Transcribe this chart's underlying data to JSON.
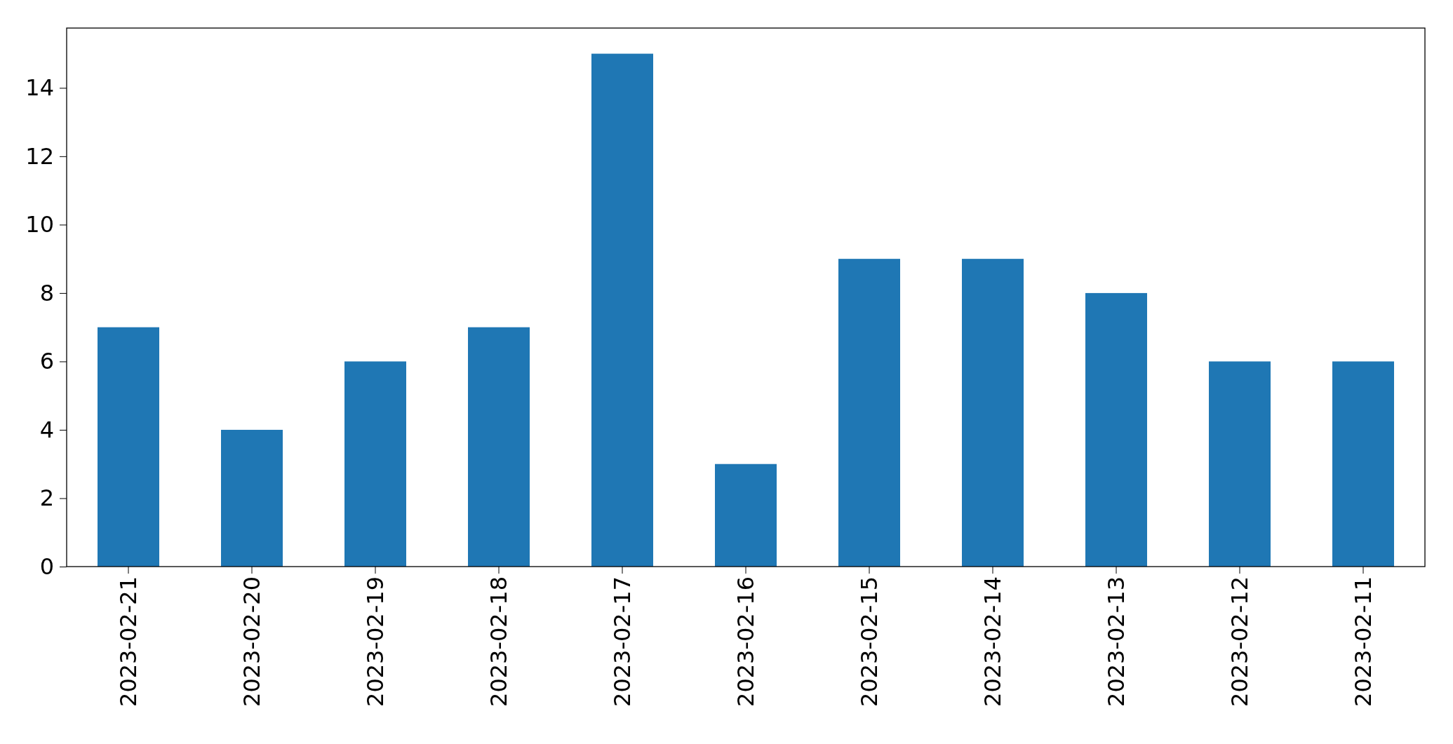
{
  "chart_data": {
    "type": "bar",
    "categories": [
      "2023-02-21",
      "2023-02-20",
      "2023-02-19",
      "2023-02-18",
      "2023-02-17",
      "2023-02-16",
      "2023-02-15",
      "2023-02-14",
      "2023-02-13",
      "2023-02-12",
      "2023-02-11"
    ],
    "values": [
      7,
      4,
      6,
      7,
      15,
      3,
      9,
      9,
      8,
      6,
      6
    ],
    "color": "#1f77b4",
    "ylim": [
      0,
      15.75
    ],
    "yticks": [
      0,
      2,
      4,
      6,
      8,
      10,
      12,
      14
    ]
  }
}
